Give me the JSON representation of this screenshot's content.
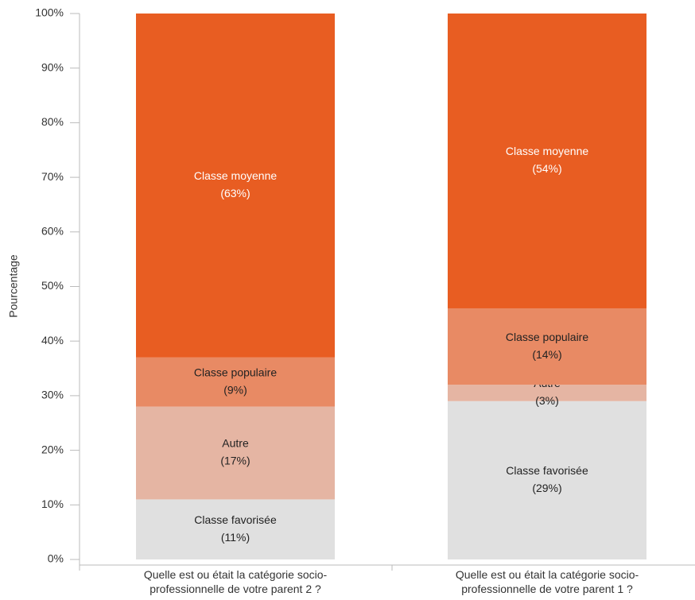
{
  "chart_data": {
    "type": "stacked_bar",
    "y_label": "Pourcentage",
    "categories": [
      "Quelle est ou était la catégorie socio-professionnelle de votre parent 2 ?",
      "Quelle est ou était la catégorie socio-professionnelle de votre parent 1 ?"
    ],
    "series": [
      {
        "name": "Classe favorisée",
        "color": "#e0e0e0",
        "values": [
          11,
          29
        ],
        "value_labels": [
          "(11%)",
          "(29%)"
        ]
      },
      {
        "name": "Autre",
        "color": "#e5b5a3",
        "values": [
          17,
          3
        ],
        "value_labels": [
          "(17%)",
          "(3%)"
        ]
      },
      {
        "name": "Classe populaire",
        "color": "#e88a64",
        "values": [
          9,
          14
        ],
        "value_labels": [
          "(9%)",
          "(14%)"
        ]
      },
      {
        "name": "Classe moyenne",
        "color": "#e85d22",
        "values": [
          63,
          54
        ],
        "value_labels": [
          "(63%)",
          "(54%)"
        ]
      }
    ],
    "ylim": [
      0,
      100
    ],
    "yticks": [
      {
        "value": 0,
        "label": "0%"
      },
      {
        "value": 10,
        "label": "10%"
      },
      {
        "value": 20,
        "label": "20%"
      },
      {
        "value": 30,
        "label": "30%"
      },
      {
        "value": 40,
        "label": "40%"
      },
      {
        "value": 50,
        "label": "50%"
      },
      {
        "value": 60,
        "label": "60%"
      },
      {
        "value": 70,
        "label": "70%"
      },
      {
        "value": 80,
        "label": "80%"
      },
      {
        "value": 90,
        "label": "90%"
      },
      {
        "value": 100,
        "label": "100%"
      }
    ]
  }
}
